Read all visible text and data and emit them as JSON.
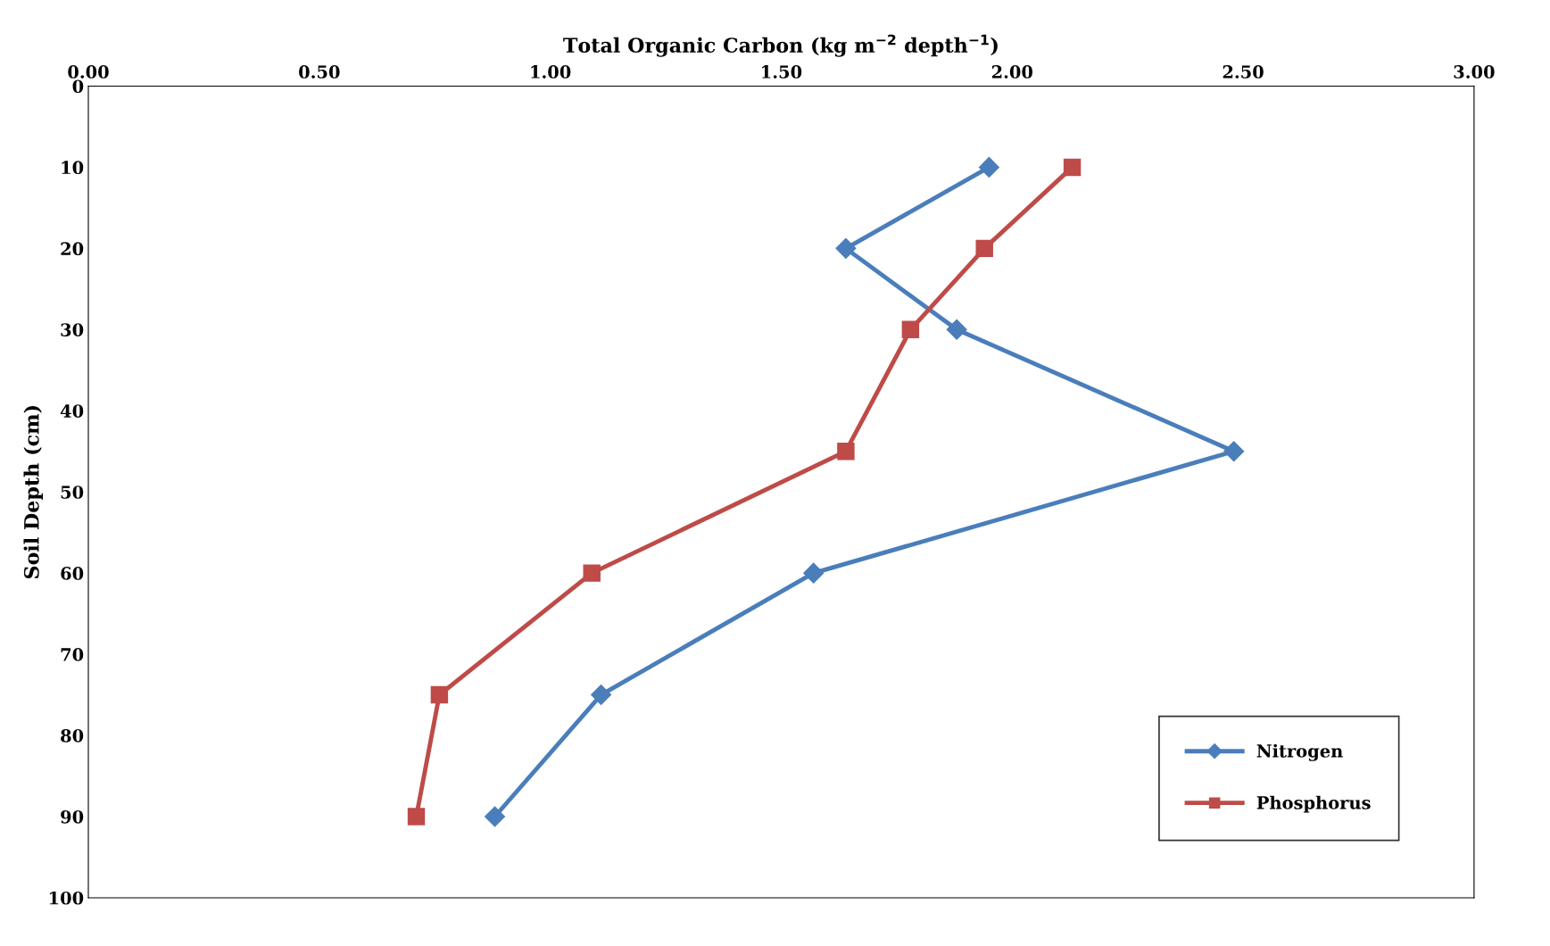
{
  "chart_data": {
    "type": "line",
    "xlabel": "Total Organic Carbon (kg m$^{−2}$ depth$^{−1}$)",
    "ylabel": "Soil Depth (cm)",
    "xlim": [
      0,
      3
    ],
    "xticks": [
      {
        "value": 0,
        "label": "0.00"
      },
      {
        "value": 0.5,
        "label": "0.50"
      },
      {
        "value": 1,
        "label": "1.00"
      },
      {
        "value": 1.5,
        "label": "1.50"
      },
      {
        "value": 2,
        "label": "2.00"
      },
      {
        "value": 2.5,
        "label": "2.50"
      },
      {
        "value": 3,
        "label": "3.00"
      }
    ],
    "ylim": [
      100,
      0
    ],
    "yticks": [
      0,
      10,
      20,
      30,
      40,
      50,
      60,
      70,
      80,
      90,
      100
    ],
    "grid": false,
    "legend": "bottom right",
    "line_style": "solid",
    "series": [
      {
        "name": "Nitrogen",
        "color": "#4a7ebb",
        "marker": "diamond",
        "x": [
          1.95,
          1.64,
          1.88,
          2.48,
          1.57,
          1.11,
          0.88
        ],
        "values": [
          10,
          20,
          30,
          45,
          60,
          75,
          90
        ]
      },
      {
        "name": "Phosphorus",
        "color": "#be4b48",
        "marker": "square",
        "x": [
          2.13,
          1.94,
          1.78,
          1.64,
          1.09,
          0.76,
          0.71
        ],
        "values": [
          10,
          20,
          30,
          45,
          60,
          75,
          90
        ]
      }
    ]
  }
}
